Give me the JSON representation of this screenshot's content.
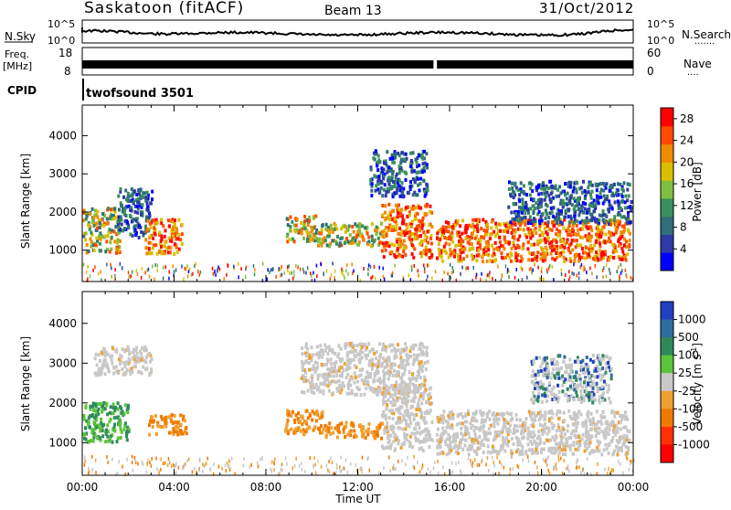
{
  "header": {
    "station": "Saskatoon (fitACF)",
    "beam": "Beam 13",
    "date": "31/Oct/2012"
  },
  "strips": {
    "noise": {
      "left_label": "N.Sky",
      "right_label": "N.Search",
      "left_ticks": [
        "10^5",
        "10^0"
      ],
      "right_ticks": [
        "10^5",
        "10^0"
      ],
      "right_dots": "......."
    },
    "freq": {
      "left_label_1": "Freq.",
      "left_label_2": "[MHz]",
      "left_ticks": [
        "18",
        "8"
      ],
      "right_label": "Nave",
      "right_ticks": [
        "60",
        "0"
      ],
      "right_dots": "...."
    },
    "cpid": {
      "left_label": "CPID",
      "program": "twofsound 3501"
    }
  },
  "colors": {
    "power_scale": [
      "#0000ff",
      "#2e3aa6",
      "#2f6e7a",
      "#3a8f5a",
      "#7fbf3f",
      "#d8c000",
      "#f08a00",
      "#ff4a00",
      "#ff0000"
    ],
    "velocity_scale": [
      "#2040c0",
      "#2e6e9e",
      "#2f8a5a",
      "#5ac43a",
      "#c8c8c8",
      "#f0a030",
      "#f07a00",
      "#ff3000",
      "#ff0000"
    ]
  },
  "chart_data": [
    {
      "type": "heatmap",
      "name_on_chart": "Power [dB]",
      "ylabel": "Slant Range [km]",
      "xlabel": "",
      "x_ticks": [
        "00:00",
        "04:00",
        "08:00",
        "12:00",
        "16:00",
        "20:00",
        "00:00"
      ],
      "xlim_hours": [
        0,
        24
      ],
      "y_ticks": [
        1000,
        2000,
        3000,
        4000
      ],
      "ylim": [
        180,
        4800
      ],
      "colorbar": {
        "label": "Power [dB]",
        "ticks": [
          4,
          8,
          12,
          16,
          20,
          24,
          28
        ],
        "range": [
          0,
          30
        ]
      },
      "regions": [
        {
          "t0": 0.0,
          "t1": 1.6,
          "r0": 900,
          "r1": 2100,
          "level": "mixed"
        },
        {
          "t0": 1.5,
          "t1": 3.0,
          "r0": 1300,
          "r1": 2600,
          "level": "weak"
        },
        {
          "t0": 2.7,
          "t1": 4.3,
          "r0": 900,
          "r1": 1800,
          "level": "strong"
        },
        {
          "t0": 8.8,
          "t1": 10.2,
          "r0": 1200,
          "r1": 1900,
          "level": "mixed"
        },
        {
          "t0": 10.2,
          "t1": 13.0,
          "r0": 1100,
          "r1": 1700,
          "level": "mixed"
        },
        {
          "t0": 12.5,
          "t1": 15.0,
          "r0": 2400,
          "r1": 3600,
          "level": "weak"
        },
        {
          "t0": 13.0,
          "t1": 15.2,
          "r0": 800,
          "r1": 2200,
          "level": "strong"
        },
        {
          "t0": 15.4,
          "t1": 23.8,
          "r0": 700,
          "r1": 1800,
          "level": "strong"
        },
        {
          "t0": 18.5,
          "t1": 23.9,
          "r0": 1700,
          "r1": 2800,
          "level": "weak"
        },
        {
          "t0": 0,
          "t1": 24,
          "r0": 200,
          "r1": 650,
          "level": "sparse"
        }
      ]
    },
    {
      "type": "heatmap",
      "name_on_chart": "Velocity [m s^-1]",
      "ylabel": "Slant Range [km]",
      "xlabel": "Time UT",
      "x_ticks": [
        "00:00",
        "04:00",
        "08:00",
        "12:00",
        "16:00",
        "20:00",
        "00:00"
      ],
      "xlim_hours": [
        0,
        24
      ],
      "y_ticks": [
        1000,
        2000,
        3000,
        4000
      ],
      "ylim": [
        180,
        4800
      ],
      "colorbar": {
        "label": "Velocity [m s",
        "label_sup": "-1",
        "label_end": "]",
        "ticks": [
          "1000",
          "500",
          "100",
          "25",
          "-25",
          "-100",
          "-500",
          "-1000"
        ]
      },
      "regions": [
        {
          "t0": 0.0,
          "t1": 2.0,
          "r0": 1000,
          "r1": 2000,
          "level": "green"
        },
        {
          "t0": 0.5,
          "t1": 3.0,
          "r0": 2700,
          "r1": 3400,
          "level": "gray"
        },
        {
          "t0": 2.8,
          "t1": 4.5,
          "r0": 1200,
          "r1": 1700,
          "level": "orange"
        },
        {
          "t0": 8.8,
          "t1": 10.5,
          "r0": 1200,
          "r1": 1800,
          "level": "orange"
        },
        {
          "t0": 10.5,
          "t1": 13.0,
          "r0": 1100,
          "r1": 1500,
          "level": "orange"
        },
        {
          "t0": 9.5,
          "t1": 15.0,
          "r0": 2200,
          "r1": 3500,
          "level": "gray"
        },
        {
          "t0": 13.0,
          "t1": 15.2,
          "r0": 800,
          "r1": 2400,
          "level": "gray"
        },
        {
          "t0": 15.4,
          "t1": 23.8,
          "r0": 700,
          "r1": 1800,
          "level": "gray"
        },
        {
          "t0": 19.5,
          "t1": 23.0,
          "r0": 2000,
          "r1": 3200,
          "level": "blue"
        },
        {
          "t0": 0,
          "t1": 24,
          "r0": 200,
          "r1": 650,
          "level": "sparse_orange"
        }
      ]
    }
  ]
}
